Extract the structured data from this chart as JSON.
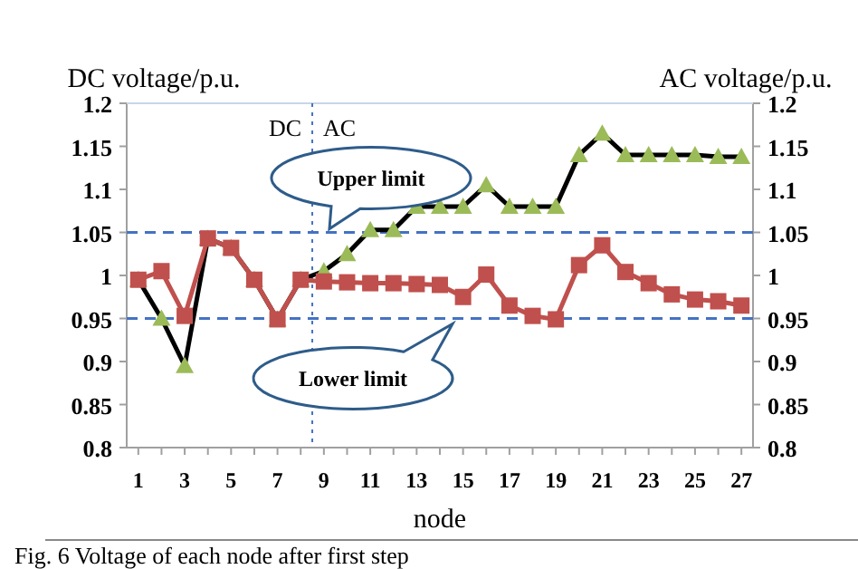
{
  "chart_data": {
    "type": "line",
    "ylabel": "DC voltage/p.u.",
    "y2label": "AC voltage/p.u.",
    "xlabel": "node",
    "x": [
      1,
      2,
      3,
      4,
      5,
      6,
      7,
      8,
      9,
      10,
      11,
      12,
      13,
      14,
      15,
      16,
      17,
      18,
      19,
      20,
      21,
      22,
      23,
      24,
      25,
      26,
      27
    ],
    "xlim": [
      0.5,
      27.5
    ],
    "xticks": [
      1,
      {
        "value": 2,
        "label": null
      },
      3,
      {
        "value": 4,
        "label": null
      },
      5,
      {
        "value": 6,
        "label": null
      },
      7,
      {
        "value": 8,
        "label": null
      },
      9,
      {
        "value": 10,
        "label": null
      },
      11,
      {
        "value": 12,
        "label": null
      },
      13,
      {
        "value": 14,
        "label": null
      },
      15,
      {
        "value": 16,
        "label": null
      },
      17,
      {
        "value": 18,
        "label": null
      },
      19,
      {
        "value": 20,
        "label": null
      },
      21,
      {
        "value": 22,
        "label": null
      },
      23,
      {
        "value": 24,
        "label": null
      },
      25,
      {
        "value": 26,
        "label": null
      },
      27
    ],
    "ylim": [
      0.8,
      1.2
    ],
    "yticks": [
      0.8,
      0.85,
      0.9,
      0.95,
      1,
      1.05,
      1.1,
      1.15,
      1.2
    ],
    "y2lim": [
      0.8,
      1.2
    ],
    "y2ticks": [
      0.8,
      0.85,
      0.9,
      0.95,
      1,
      1.05,
      1.1,
      1.15,
      1.2
    ],
    "series": [
      {
        "color": "#000000",
        "marker": "triangle",
        "colors": [
          "#9bbb59",
          "#9bbb59",
          "#9bbb59",
          "#9bbb59",
          "#9bbb59",
          "#9bbb59",
          "#9bbb59",
          "#9bbb59",
          "#9bbb59",
          "#9bbb59",
          "#9bbb59",
          "#9bbb59",
          "#9bbb59",
          "#9bbb59",
          "#9bbb59",
          "#9bbb59",
          "#9bbb59",
          "#9bbb59",
          "#9bbb59",
          "#9bbb59",
          "#9bbb59",
          "#9bbb59",
          "#9bbb59",
          "#9bbb59",
          "#9bbb59",
          "#9bbb59",
          "#9bbb59"
        ],
        "values": [
          0.995,
          0.95,
          0.895,
          1.043,
          1.032,
          0.995,
          0.949,
          0.995,
          1.005,
          1.025,
          1.053,
          1.053,
          1.08,
          1.08,
          1.08,
          1.105,
          1.08,
          1.08,
          1.08,
          1.14,
          1.165,
          1.14,
          1.14,
          1.14,
          1.14,
          1.138,
          1.138
        ]
      },
      {
        "color": "#c0504d",
        "marker": "square",
        "values": [
          0.995,
          1.005,
          0.953,
          1.043,
          1.032,
          0.995,
          0.949,
          0.995,
          0.993,
          0.992,
          0.991,
          0.991,
          0.99,
          0.989,
          0.975,
          1.001,
          0.965,
          0.953,
          0.949,
          1.012,
          1.035,
          1.004,
          0.991,
          0.978,
          0.972,
          0.97,
          0.965
        ]
      }
    ],
    "ref_lines": [
      {
        "axis": "y",
        "value": 1.05,
        "label": "Upper limit",
        "color": "#4472c4",
        "line_style": "dashed"
      },
      {
        "axis": "y",
        "value": 0.95,
        "label": "Lower limit",
        "color": "#4472c4",
        "line_style": "dashed"
      },
      {
        "axis": "x",
        "value": 8.5,
        "label": null,
        "color": "#4472c4",
        "line_style": "dotted"
      }
    ],
    "annotations": [
      "DC",
      "AC",
      "Fig. 6   Voltage of each node after first step"
    ],
    "grid": false
  }
}
